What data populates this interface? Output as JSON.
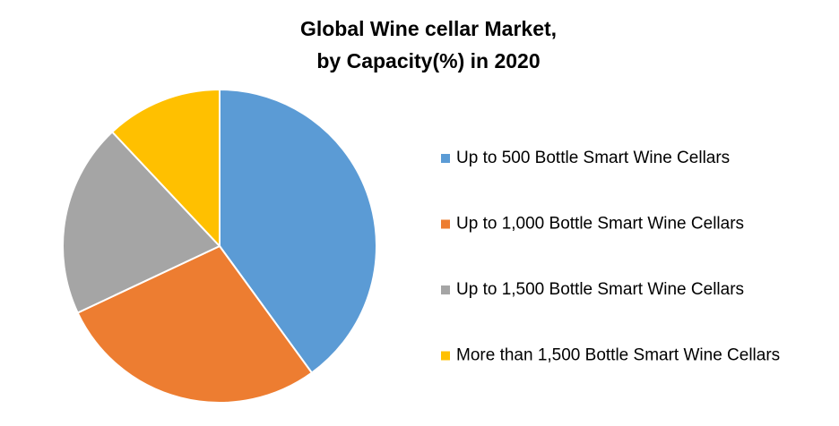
{
  "chart_data": {
    "type": "pie",
    "title": [
      "Global Wine cellar Market,",
      "by Capacity(%) in 2020"
    ],
    "categories": [
      "Up to 500 Bottle Smart Wine Cellars",
      "Up to 1,000 Bottle Smart Wine Cellars",
      "Up to 1,500 Bottle Smart Wine Cellars",
      "More than 1,500 Bottle Smart Wine Cellars"
    ],
    "values": [
      40,
      28,
      20,
      12
    ],
    "colors": [
      "#5b9bd5",
      "#ed7d31",
      "#a5a5a5",
      "#ffc000"
    ],
    "legend": "right"
  }
}
